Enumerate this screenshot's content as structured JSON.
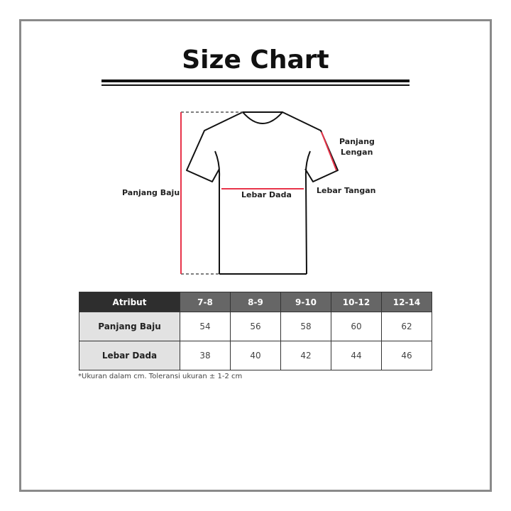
{
  "title": "Size Chart",
  "diagram": {
    "labels": {
      "panjang_baju": "Panjang Baju",
      "lebar_dada": "Lebar Dada",
      "panjang_lengan": [
        "Panjang",
        "Lengan"
      ],
      "lebar_tangan": "Lebar Tangan"
    },
    "colors": {
      "measure_line": "#e8344a",
      "outline": "#111111"
    }
  },
  "table": {
    "header": [
      "Atribut",
      "7-8",
      "8-9",
      "9-10",
      "10-12",
      "12-14"
    ],
    "rows": [
      {
        "label": "Panjang Baju",
        "values": [
          "54",
          "56",
          "58",
          "60",
          "62"
        ]
      },
      {
        "label": "Lebar Dada",
        "values": [
          "38",
          "40",
          "42",
          "44",
          "46"
        ]
      }
    ],
    "colors": {
      "header_first": "#2e2e2e",
      "header": "#666666",
      "row_label_bg": "#e2e2e2"
    }
  },
  "note": "*Ukuran dalam cm. Toleransi ukuran ± 1-2 cm"
}
